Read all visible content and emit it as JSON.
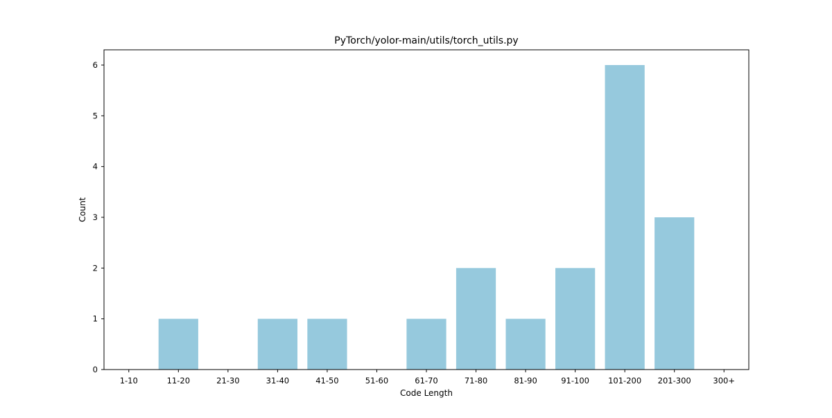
{
  "chart_data": {
    "type": "bar",
    "title": "PyTorch/yolor-main/utils/torch_utils.py",
    "xlabel": "Code Length",
    "ylabel": "Count",
    "categories": [
      "1-10",
      "11-20",
      "21-30",
      "31-40",
      "41-50",
      "51-60",
      "61-70",
      "71-80",
      "81-90",
      "91-100",
      "101-200",
      "201-300",
      "300+"
    ],
    "values": [
      0,
      1,
      0,
      1,
      1,
      0,
      1,
      2,
      1,
      2,
      6,
      3,
      0
    ],
    "ylim": [
      0,
      6.3
    ],
    "yticks": [
      0,
      1,
      2,
      3,
      4,
      5,
      6
    ],
    "grid": false,
    "bar_color": "#96c9dd"
  }
}
